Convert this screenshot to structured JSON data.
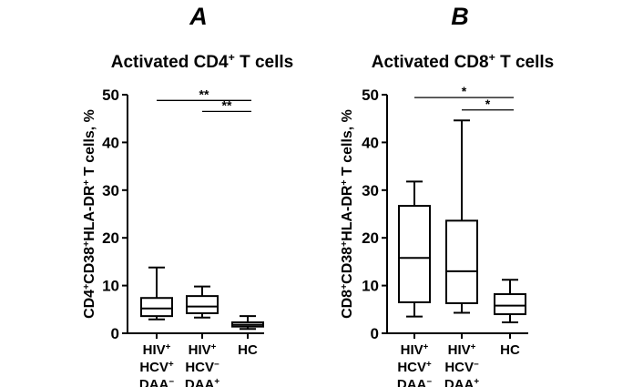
{
  "chart_data": [
    {
      "type": "box",
      "panel": "A",
      "title": "Activated CD4",
      "title_sup": "+",
      "title_tail": " T cells",
      "ylabel": [
        {
          "t": "CD4",
          "s": false
        },
        {
          "t": "+",
          "s": true
        },
        {
          "t": "CD38",
          "s": false
        },
        {
          "t": "+",
          "s": true
        },
        {
          "t": "HLA-DR",
          "s": false
        },
        {
          "t": "+",
          "s": true
        },
        {
          "t": " T cells, %",
          "s": false
        }
      ],
      "ylim": [
        0,
        50
      ],
      "yticks": [
        "0",
        "10",
        "20",
        "30",
        "40",
        "50"
      ],
      "categories": [
        {
          "lines": [
            [
              {
                "t": "HIV",
                "s": false
              },
              {
                "t": "+",
                "s": true
              }
            ],
            [
              {
                "t": "HCV",
                "s": false
              },
              {
                "t": "+",
                "s": true
              }
            ],
            [
              {
                "t": "DAA",
                "s": false
              },
              {
                "t": "−",
                "s": true
              }
            ]
          ]
        },
        {
          "lines": [
            [
              {
                "t": "HIV",
                "s": false
              },
              {
                "t": "+",
                "s": true
              }
            ],
            [
              {
                "t": "HCV",
                "s": false
              },
              {
                "t": "−",
                "s": true
              }
            ],
            [
              {
                "t": "DAA",
                "s": false
              },
              {
                "t": "+",
                "s": true
              }
            ]
          ]
        },
        {
          "lines": [
            [
              {
                "t": "HC",
                "s": false
              }
            ]
          ]
        }
      ],
      "boxes": [
        {
          "min": 2.9,
          "q1": 3.6,
          "median": 5.2,
          "q3": 7.4,
          "max": 13.8
        },
        {
          "min": 3.3,
          "q1": 4.2,
          "median": 5.6,
          "q3": 7.8,
          "max": 9.8
        },
        {
          "min": 0.9,
          "q1": 1.4,
          "median": 1.8,
          "q3": 2.3,
          "max": 3.6
        }
      ],
      "significance": [
        {
          "from": 0,
          "to": 2,
          "y": 48.8,
          "label": "**"
        },
        {
          "from": 1,
          "to": 2,
          "y": 46.5,
          "label": "**"
        }
      ]
    },
    {
      "type": "box",
      "panel": "B",
      "title": "Activated CD8",
      "title_sup": "+",
      "title_tail": " T cells",
      "ylabel": [
        {
          "t": "CD8",
          "s": false
        },
        {
          "t": "+",
          "s": true
        },
        {
          "t": "CD38",
          "s": false
        },
        {
          "t": "+",
          "s": true
        },
        {
          "t": "HLA-DR",
          "s": false
        },
        {
          "t": "+",
          "s": true
        },
        {
          "t": " T cells, %",
          "s": false
        }
      ],
      "ylim": [
        0,
        50
      ],
      "yticks": [
        "0",
        "10",
        "20",
        "30",
        "40",
        "50"
      ],
      "categories": [
        {
          "lines": [
            [
              {
                "t": "HIV",
                "s": false
              },
              {
                "t": "+",
                "s": true
              }
            ],
            [
              {
                "t": "HCV",
                "s": false
              },
              {
                "t": "+",
                "s": true
              }
            ],
            [
              {
                "t": "DAA",
                "s": false
              },
              {
                "t": "−",
                "s": true
              }
            ]
          ]
        },
        {
          "lines": [
            [
              {
                "t": "HIV",
                "s": false
              },
              {
                "t": "+",
                "s": true
              }
            ],
            [
              {
                "t": "HCV",
                "s": false
              },
              {
                "t": "−",
                "s": true
              }
            ],
            [
              {
                "t": "DAA",
                "s": false
              },
              {
                "t": "+",
                "s": true
              }
            ]
          ]
        },
        {
          "lines": [
            [
              {
                "t": "HC",
                "s": false
              }
            ]
          ]
        }
      ],
      "boxes": [
        {
          "min": 3.5,
          "q1": 6.5,
          "median": 15.8,
          "q3": 26.7,
          "max": 31.8
        },
        {
          "min": 4.3,
          "q1": 6.3,
          "median": 13.0,
          "q3": 23.6,
          "max": 44.6
        },
        {
          "min": 2.3,
          "q1": 4.0,
          "median": 5.8,
          "q3": 8.2,
          "max": 11.2
        }
      ],
      "significance": [
        {
          "from": 0,
          "to": 2,
          "y": 49.4,
          "label": "*"
        },
        {
          "from": 1,
          "to": 2,
          "y": 46.8,
          "label": "*"
        }
      ]
    }
  ]
}
